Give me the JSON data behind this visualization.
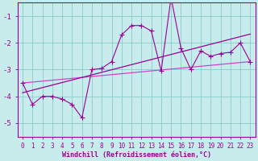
{
  "x": [
    0,
    1,
    2,
    3,
    4,
    5,
    6,
    7,
    8,
    9,
    10,
    11,
    12,
    13,
    14,
    15,
    16,
    17,
    18,
    19,
    20,
    21,
    22,
    23
  ],
  "y": [
    -3.5,
    -4.3,
    -4.0,
    -4.0,
    -4.1,
    -4.3,
    -4.8,
    -3.0,
    -2.95,
    -2.7,
    -1.7,
    -1.35,
    -1.35,
    -1.55,
    -3.05,
    -0.3,
    -2.2,
    -3.0,
    -2.3,
    -2.5,
    -2.4,
    -2.35,
    -2.0,
    -2.7
  ],
  "line_color": "#990099",
  "marker": "+",
  "marker_size": 4,
  "marker_lw": 0.8,
  "line_width": 0.8,
  "bg_color": "#c8ecec",
  "grid_color": "#88cccc",
  "axis_color": "#990099",
  "tick_color": "#990099",
  "xlabel": "Windchill (Refroidissement éolien,°C)",
  "ylim": [
    -5.5,
    -0.5
  ],
  "xlim": [
    -0.5,
    23.5
  ],
  "yticks": [
    -5,
    -4,
    -3,
    -2,
    -1
  ],
  "xticks": [
    0,
    1,
    2,
    3,
    4,
    5,
    6,
    7,
    8,
    9,
    10,
    11,
    12,
    13,
    14,
    15,
    16,
    17,
    18,
    19,
    20,
    21,
    22,
    23
  ],
  "reg_color": "#990099",
  "straight_color": "#cc44cc",
  "tick_fontsize": 5.5,
  "xlabel_fontsize": 6.0
}
